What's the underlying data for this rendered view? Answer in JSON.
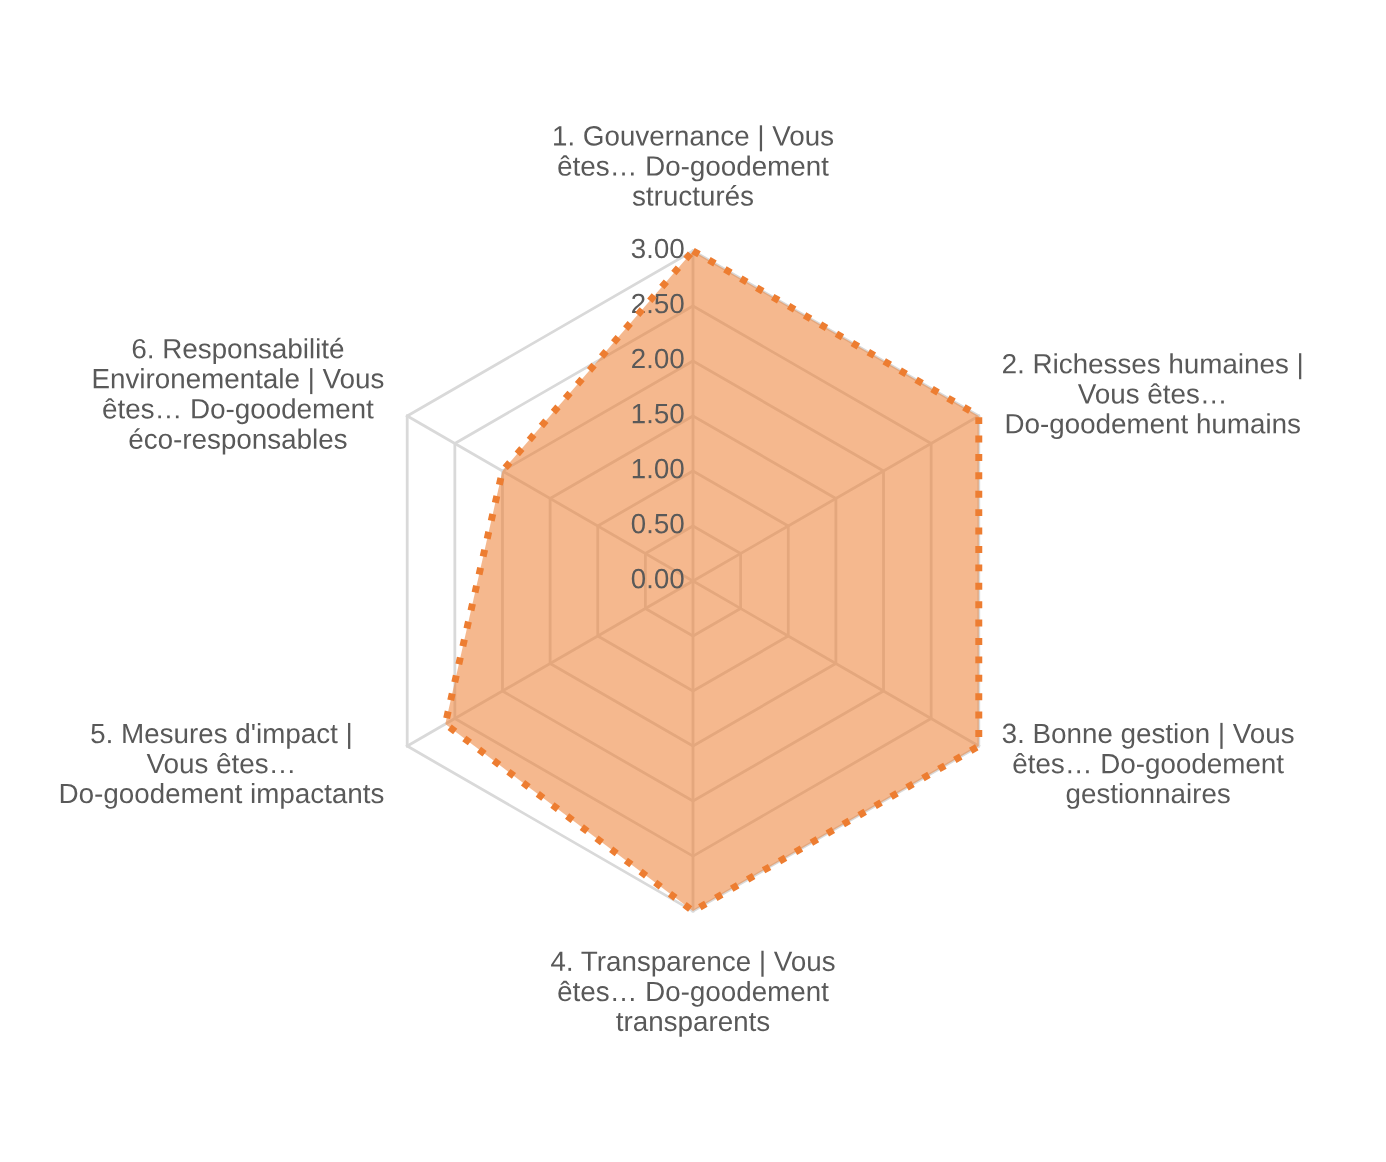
{
  "chart_data": {
    "type": "radar",
    "categories": [
      "1. Gouvernance | Vous êtes… Do-goodement structurés",
      "2. Richesses humaines | Vous êtes… Do-goodement humains",
      "3. Bonne gestion | Vous êtes… Do-goodement gestionnaires",
      "4. Transparence | Vous êtes… Do-goodement transparents",
      "5. Mesures d'impact | Vous êtes… Do-goodement impactants",
      "6. Responsabilité Environementale | Vous êtes… Do-goodement éco-responsables"
    ],
    "series": [
      {
        "color": "#ed7d31",
        "values": [
          3.0,
          3.0,
          3.0,
          3.0,
          2.6,
          2.0
        ]
      }
    ],
    "ylim": [
      0,
      3
    ],
    "yticks": [
      {
        "value": 0,
        "label": "0.00"
      },
      {
        "value": 0.5,
        "label": "0.50"
      },
      {
        "value": 1,
        "label": "1.00"
      },
      {
        "value": 1.5,
        "label": "1.50"
      },
      {
        "value": 2,
        "label": "2.00"
      },
      {
        "value": 2.5,
        "label": "2.50"
      },
      {
        "value": 3,
        "label": "3.00"
      }
    ],
    "grid": true,
    "marker": "none",
    "line_style": "dotted"
  }
}
